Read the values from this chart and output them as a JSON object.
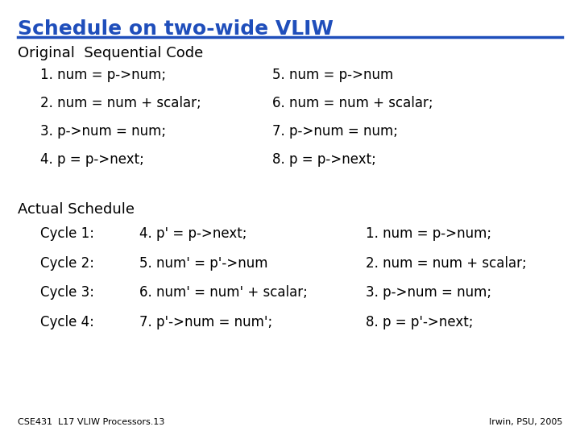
{
  "title": "Schedule on two-wide VLIW",
  "title_color": "#1F4EBB",
  "title_underline_color": "#1F4EBB",
  "bg_color": "#FFFFFF",
  "text_color": "#000000",
  "section1_header": "Original  Sequential Code",
  "orig_col1": [
    "1. num = p->num;",
    "2. num = num + scalar;",
    "3. p->num = num;",
    "4. p = p->next;"
  ],
  "orig_col2": [
    "5. num = p->num",
    "6. num = num + scalar;",
    "7. p->num = num;",
    "8. p = p->next;"
  ],
  "section2_header": "Actual Schedule",
  "sched_cycles": [
    "Cycle 1:",
    "Cycle 2:",
    "Cycle 3:",
    "Cycle 4:"
  ],
  "sched_col1": [
    "4. p' = p->next;",
    "5. num' = p'->num",
    "6. num' = num' + scalar;",
    "7. p'->num = num';"
  ],
  "sched_col2": [
    "1. num = p->num;",
    "2. num = num + scalar;",
    "3. p->num = num;",
    "8. p = p'->next;"
  ],
  "footer_left": "CSE431  L17 VLIW Processors.13",
  "footer_right": "Irwin, PSU, 2005"
}
